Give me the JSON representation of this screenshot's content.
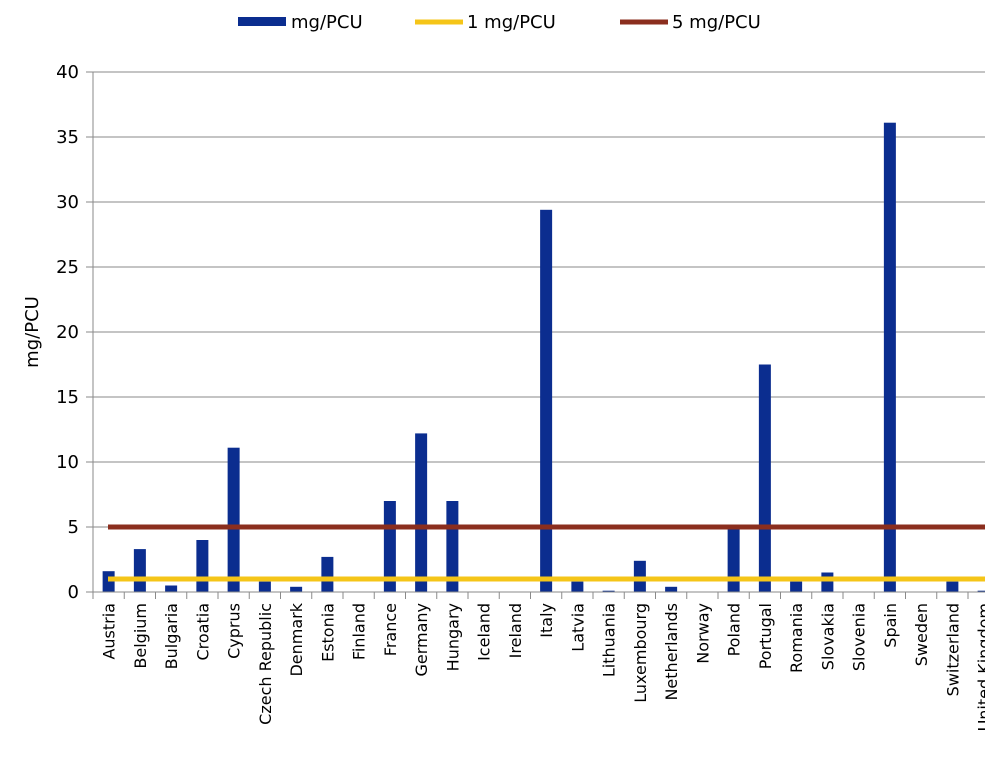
{
  "chart_data": {
    "type": "bar",
    "title": "",
    "xlabel": "",
    "ylabel": "mg/PCU",
    "ylim": [
      0,
      40
    ],
    "yticks": [
      0,
      5,
      10,
      15,
      20,
      25,
      30,
      35,
      40
    ],
    "grid": true,
    "legend_position": "top",
    "categories": [
      "Austria",
      "Belgium",
      "Bulgaria",
      "Croatia",
      "Cyprus",
      "Czech Republic",
      "Denmark",
      "Estonia",
      "Finland",
      "France",
      "Germany",
      "Hungary",
      "Iceland",
      "Ireland",
      "Italy",
      "Latvia",
      "Lithuania",
      "Luxembourg",
      "Netherlands",
      "Norway",
      "Poland",
      "Portugal",
      "Romania",
      "Slovakia",
      "Slovenia",
      "Spain",
      "Sweden",
      "Switzerland",
      "United Kingdom"
    ],
    "series": [
      {
        "name": "mg/PCU",
        "kind": "bar",
        "color": "#0b2d8f",
        "values": [
          1.6,
          3.3,
          0.5,
          4.0,
          11.1,
          0.8,
          0.4,
          2.7,
          0,
          7.0,
          12.2,
          7.0,
          0,
          0,
          29.4,
          0.8,
          0.1,
          2.4,
          0.4,
          0,
          5.0,
          17.5,
          0.8,
          1.5,
          0,
          36.1,
          0,
          0.8,
          0.1
        ]
      },
      {
        "name": "1 mg/PCU",
        "kind": "reference-line",
        "color": "#f5c518",
        "value": 1
      },
      {
        "name": "5 mg/PCU",
        "kind": "reference-line",
        "color": "#8b2e1e",
        "value": 5
      }
    ]
  }
}
